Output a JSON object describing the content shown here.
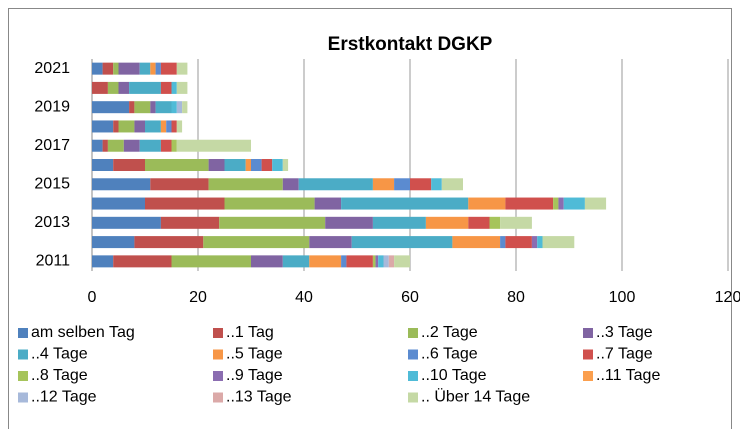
{
  "chart_data": {
    "type": "stacked-bar-horizontal",
    "title": "Erstkontakt DGKP",
    "categories": [
      "2011",
      null,
      "2013",
      null,
      "2015",
      null,
      "2017",
      null,
      "2019",
      null,
      "2021"
    ],
    "xlim": [
      0,
      120
    ],
    "xticks": [
      0,
      20,
      40,
      60,
      80,
      100,
      120
    ],
    "grid": true,
    "legend": "bottom",
    "series": [
      {
        "name": "am selben Tag",
        "color": "#4F81BD",
        "values": [
          4,
          8,
          13,
          10,
          11,
          4,
          2,
          4,
          7,
          0,
          2
        ]
      },
      {
        "name": "..1 Tag",
        "color": "#C0504D",
        "values": [
          11,
          13,
          11,
          15,
          11,
          6,
          1,
          1,
          1,
          3,
          2
        ]
      },
      {
        "name": "..2 Tage",
        "color": "#9BBB59",
        "values": [
          15,
          20,
          20,
          17,
          14,
          12,
          3,
          3,
          3,
          2,
          1
        ]
      },
      {
        "name": "..3 Tage",
        "color": "#8064A2",
        "values": [
          6,
          8,
          9,
          5,
          3,
          3,
          3,
          2,
          1,
          2,
          4
        ]
      },
      {
        "name": "..4 Tage",
        "color": "#4BACC6",
        "values": [
          5,
          19,
          10,
          24,
          14,
          4,
          4,
          3,
          3,
          6,
          2
        ]
      },
      {
        "name": "..5 Tage",
        "color": "#F79646",
        "values": [
          6,
          9,
          8,
          7,
          4,
          1,
          0,
          1,
          0,
          0,
          1
        ]
      },
      {
        "name": "..6 Tage",
        "color": "#5B8BD0",
        "values": [
          1,
          1,
          0,
          0,
          3,
          2,
          0,
          1,
          0,
          0,
          1
        ]
      },
      {
        "name": "..7 Tage",
        "color": "#D0504D",
        "values": [
          5,
          5,
          4,
          9,
          4,
          2,
          2,
          1,
          0,
          2,
          3
        ]
      },
      {
        "name": "..8 Tage",
        "color": "#A6C45B",
        "values": [
          0.5,
          0,
          2,
          1,
          0,
          0,
          1,
          0,
          0,
          0,
          0
        ]
      },
      {
        "name": "..9 Tage",
        "color": "#8B6DB1",
        "values": [
          0.5,
          1,
          0,
          1,
          0,
          0,
          0,
          0,
          0,
          0,
          0
        ]
      },
      {
        "name": "..10 Tage",
        "color": "#4FBBD7",
        "values": [
          1,
          1,
          0,
          4,
          2,
          2,
          0,
          0,
          1,
          1,
          0
        ]
      },
      {
        "name": "..11 Tage",
        "color": "#FB9F4E",
        "values": [
          0,
          0,
          0,
          0,
          0,
          0,
          0,
          0,
          0,
          0,
          0
        ]
      },
      {
        "name": "..12 Tage",
        "color": "#A7B9DA",
        "values": [
          1,
          0,
          0,
          0,
          0,
          0,
          0,
          0,
          1,
          0,
          0
        ]
      },
      {
        "name": "..13 Tage",
        "color": "#DBA9A8",
        "values": [
          1,
          0,
          0,
          0,
          0,
          0,
          0,
          0,
          0,
          0,
          0
        ]
      },
      {
        "name": ".. Über 14 Tage",
        "color": "#C5D9A5",
        "values": [
          3,
          6,
          6,
          4,
          4,
          1,
          14,
          1,
          1,
          2,
          2
        ]
      }
    ]
  }
}
